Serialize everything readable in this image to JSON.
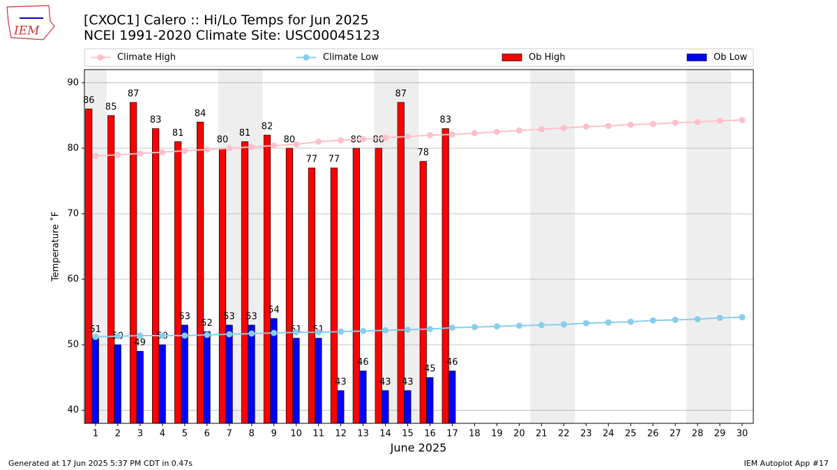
{
  "logo": "IEM",
  "footer_left": "Generated at 17 Jun 2025 5:37 PM CDT in 0.47s",
  "footer_right": "IEM Autoplot App #17",
  "chart_data": {
    "type": "bar",
    "title": "[CXOC1] Calero :: Hi/Lo Temps for Jun 2025",
    "subtitle": "NCEI 1991-2020 Climate Site: USC00045123",
    "x_label": "June 2025",
    "y_label": "Temperature ˚F",
    "categories": [
      1,
      2,
      3,
      4,
      5,
      6,
      7,
      8,
      9,
      10,
      11,
      12,
      13,
      14,
      15,
      16,
      17,
      18,
      19,
      20,
      21,
      22,
      23,
      24,
      25,
      26,
      27,
      28,
      29,
      30
    ],
    "shaded_categories": [
      1,
      7,
      8,
      14,
      15,
      21,
      22,
      28,
      29
    ],
    "shade_color": "#eeeeee",
    "ylim": [
      38,
      92
    ],
    "yticks": [
      40,
      50,
      60,
      70,
      80,
      90
    ],
    "grid": true,
    "legend": "top",
    "series": [
      {
        "name": "Climate High",
        "type": "line",
        "color": "#ffc0cb",
        "values": [
          78.8,
          79.0,
          79.2,
          79.4,
          79.6,
          79.8,
          80.0,
          80.2,
          80.4,
          80.6,
          81.0,
          81.2,
          81.4,
          81.6,
          81.8,
          82.0,
          82.1,
          82.3,
          82.5,
          82.7,
          82.9,
          83.1,
          83.3,
          83.4,
          83.6,
          83.7,
          83.9,
          84.0,
          84.2,
          84.3
        ]
      },
      {
        "name": "Climate Low",
        "type": "line",
        "color": "#87ceeb",
        "values": [
          51.2,
          51.3,
          51.4,
          51.4,
          51.4,
          51.5,
          51.6,
          51.7,
          51.8,
          51.9,
          51.9,
          52.0,
          52.1,
          52.2,
          52.3,
          52.4,
          52.6,
          52.7,
          52.8,
          52.9,
          53.0,
          53.1,
          53.3,
          53.4,
          53.5,
          53.7,
          53.8,
          53.9,
          54.1,
          54.2
        ]
      },
      {
        "name": "Ob High",
        "type": "bar",
        "color": "#ff0000",
        "values": [
          86,
          85,
          87,
          83,
          81,
          84,
          80,
          81,
          82,
          80,
          77,
          77,
          80,
          80,
          87,
          78,
          83,
          null,
          null,
          null,
          null,
          null,
          null,
          null,
          null,
          null,
          null,
          null,
          null,
          null
        ]
      },
      {
        "name": "Ob Low",
        "type": "bar",
        "color": "#0000ff",
        "values": [
          51,
          50,
          49,
          50,
          53,
          52,
          53,
          53,
          54,
          51,
          51,
          43,
          46,
          43,
          43,
          45,
          46,
          null,
          null,
          null,
          null,
          null,
          null,
          null,
          null,
          null,
          null,
          null,
          null,
          null
        ]
      }
    ]
  }
}
